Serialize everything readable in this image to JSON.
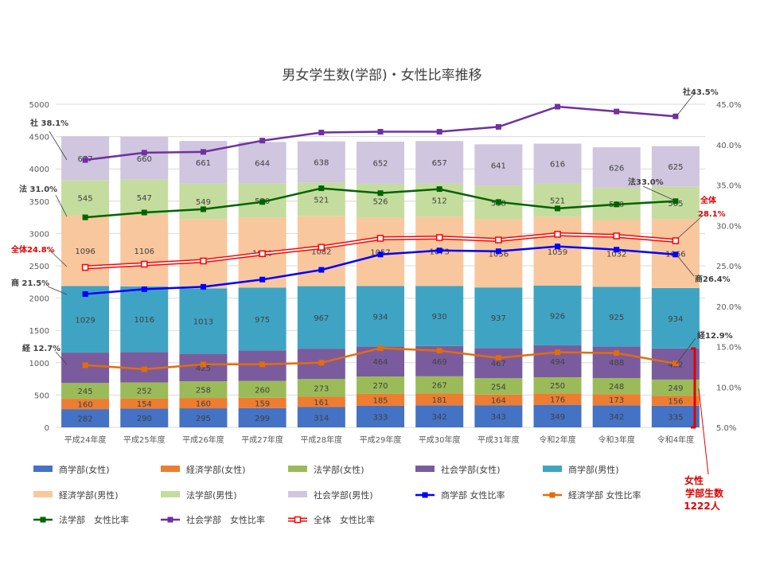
{
  "chart_data": {
    "type": "bar",
    "title": "男女学生数(学部)・女性比率推移",
    "categories": [
      "平成24年度",
      "平成25年度",
      "平成26年度",
      "平成27年度",
      "平成28年度",
      "平成29年度",
      "平成30年度",
      "平成31年度",
      "令和2年度",
      "令和3年度",
      "令和4年度"
    ],
    "ylim": [
      0,
      5000
    ],
    "yticks": [
      0,
      500,
      1000,
      1500,
      2000,
      2500,
      3000,
      3500,
      4000,
      4500,
      5000
    ],
    "y2lim": [
      0.05,
      0.45
    ],
    "y2ticks": [
      "5.0%",
      "10.0%",
      "15.0%",
      "20.0%",
      "25.0%",
      "30.0%",
      "35.0%",
      "40.0%",
      "45.0%"
    ],
    "stacked": true,
    "bar_series": [
      {
        "name": "商学部(女性)",
        "color": "#4472c4",
        "values": [
          282,
          290,
          295,
          299,
          314,
          333,
          342,
          343,
          349,
          342,
          335
        ]
      },
      {
        "name": "経済学部(女性)",
        "color": "#ed7d31",
        "values": [
          160,
          154,
          160,
          159,
          161,
          185,
          181,
          164,
          176,
          173,
          156
        ]
      },
      {
        "name": "法学部(女性)",
        "color": "#9bbb59",
        "values": [
          245,
          252,
          258,
          260,
          273,
          270,
          267,
          254,
          250,
          248,
          249
        ]
      },
      {
        "name": "社会学部(女性)",
        "color": "#7a5c9e",
        "values": [
          null,
          null,
          425,
          null,
          null,
          464,
          469,
          467,
          494,
          488,
          482
        ]
      },
      {
        "name": "商学部(男性)",
        "color": "#3fa4c4",
        "values": [
          1029,
          1016,
          1013,
          975,
          967,
          934,
          930,
          937,
          926,
          925,
          934
        ]
      },
      {
        "name": "経済学部(男性)",
        "color": "#f9c79d",
        "values": [
          1096,
          1106,
          null,
          1080,
          1082,
          1057,
          1073,
          1056,
          1059,
          1032,
          1066
        ]
      },
      {
        "name": "法学部(男性)",
        "color": "#c5dc9f",
        "values": [
          545,
          547,
          549,
          530,
          521,
          526,
          512,
          518,
          521,
          500,
          505
        ]
      },
      {
        "name": "社会学部(男性)",
        "color": "#d0c6df",
        "values": [
          677,
          660,
          661,
          644,
          638,
          652,
          657,
          641,
          616,
          626,
          625
        ]
      }
    ],
    "line_series": [
      {
        "name": "商学部 女性比率",
        "color": "#0000ff",
        "values": [
          0.215,
          0.221,
          0.224,
          0.233,
          0.245,
          0.264,
          0.269,
          0.268,
          0.274,
          0.27,
          0.264
        ]
      },
      {
        "name": "経済学部 女性比率",
        "color": "#e46c0a",
        "values": [
          0.127,
          0.122,
          0.128,
          0.128,
          0.13,
          0.148,
          0.145,
          0.136,
          0.143,
          0.142,
          0.129
        ]
      },
      {
        "name": "法学部　女性比率",
        "color": "#006400",
        "values": [
          0.31,
          0.316,
          0.32,
          0.329,
          0.346,
          0.34,
          0.345,
          0.329,
          0.321,
          0.326,
          0.33
        ]
      },
      {
        "name": "社会学部　女性比率",
        "color": "#7030a0",
        "values": [
          0.381,
          0.39,
          0.391,
          0.405,
          0.415,
          0.416,
          0.416,
          0.422,
          0.447,
          0.441,
          0.435
        ]
      },
      {
        "name": "全体　女性比率",
        "color": "#ff0000",
        "double": true,
        "values": [
          0.248,
          0.252,
          0.256,
          0.265,
          0.273,
          0.284,
          0.285,
          0.282,
          0.289,
          0.287,
          0.281
        ]
      }
    ],
    "start_labels": [
      "社",
      "法",
      "全体",
      "商",
      "経"
    ],
    "start_values": [
      "38.1%",
      "31.0%",
      "24.8%",
      "21.5%",
      "12.7%"
    ],
    "end_labels": [
      "社",
      "法",
      "全体",
      "商",
      "経"
    ],
    "end_values": [
      "43.5%",
      "33.0%",
      "28.1%",
      "26.4%",
      "12.9%"
    ],
    "legend_entries": [
      "商学部(女性)",
      "経済学部(女性)",
      "法学部(女性)",
      "社会学部(女性)",
      "商学部(男性)",
      "経済学部(男性)",
      "法学部(男性)",
      "社会学部(男性)",
      "商学部 女性比率",
      "経済学部 女性比率",
      "法学部　女性比率",
      "社会学部　女性比率",
      "全体　女性比率"
    ],
    "callout": {
      "line1": "女性",
      "line2": "学部生数",
      "line3": "1222人"
    }
  }
}
